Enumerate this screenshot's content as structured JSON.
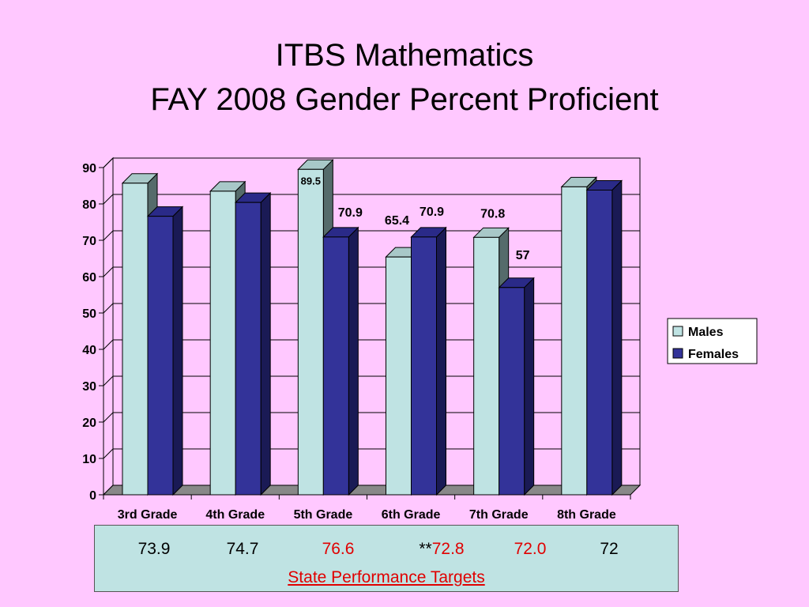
{
  "slide": {
    "title_line1": "ITBS Mathematics",
    "title_line2": "FAY 2008 Gender Percent Proficient"
  },
  "chart_data": {
    "type": "bar",
    "categories": [
      "3rd Grade",
      "4th Grade",
      "5th Grade",
      "6th Grade",
      "7th Grade",
      "8th Grade"
    ],
    "series": [
      {
        "name": "Males",
        "values": [
          85.7,
          83.5,
          89.5,
          65.4,
          70.8,
          84.7
        ],
        "color": "#bfe3e3"
      },
      {
        "name": "Females",
        "values": [
          76.6,
          80.4,
          70.9,
          70.9,
          57,
          83.8
        ],
        "color": "#333399"
      }
    ],
    "data_labels": [
      {
        "series": 0,
        "index": 2,
        "text": "89.5"
      },
      {
        "series": 1,
        "index": 2,
        "text": "70.9"
      },
      {
        "series": 0,
        "index": 3,
        "text": "65.4"
      },
      {
        "series": 1,
        "index": 3,
        "text": "70.9"
      },
      {
        "series": 0,
        "index": 4,
        "text": "70.8"
      },
      {
        "series": 1,
        "index": 4,
        "text": "57"
      }
    ],
    "ylim": [
      0,
      90
    ],
    "yticks": [
      "0",
      "10",
      "20",
      "30",
      "40",
      "50",
      "60",
      "70",
      "80",
      "90"
    ],
    "grid": true,
    "legend": "right"
  },
  "targets": {
    "values": [
      {
        "prefix": "",
        "text": "73.9",
        "color": "#000000"
      },
      {
        "prefix": "",
        "text": "74.7",
        "color": "#000000"
      },
      {
        "prefix": "",
        "text": "76.6",
        "color": "#e00000"
      },
      {
        "prefix": "**",
        "text": "72.8",
        "color": "#e00000"
      },
      {
        "prefix": "",
        "text": "72.0",
        "color": "#e00000"
      },
      {
        "prefix": "",
        "text": "72",
        "color": "#000000"
      }
    ],
    "label": "State Performance Targets"
  }
}
